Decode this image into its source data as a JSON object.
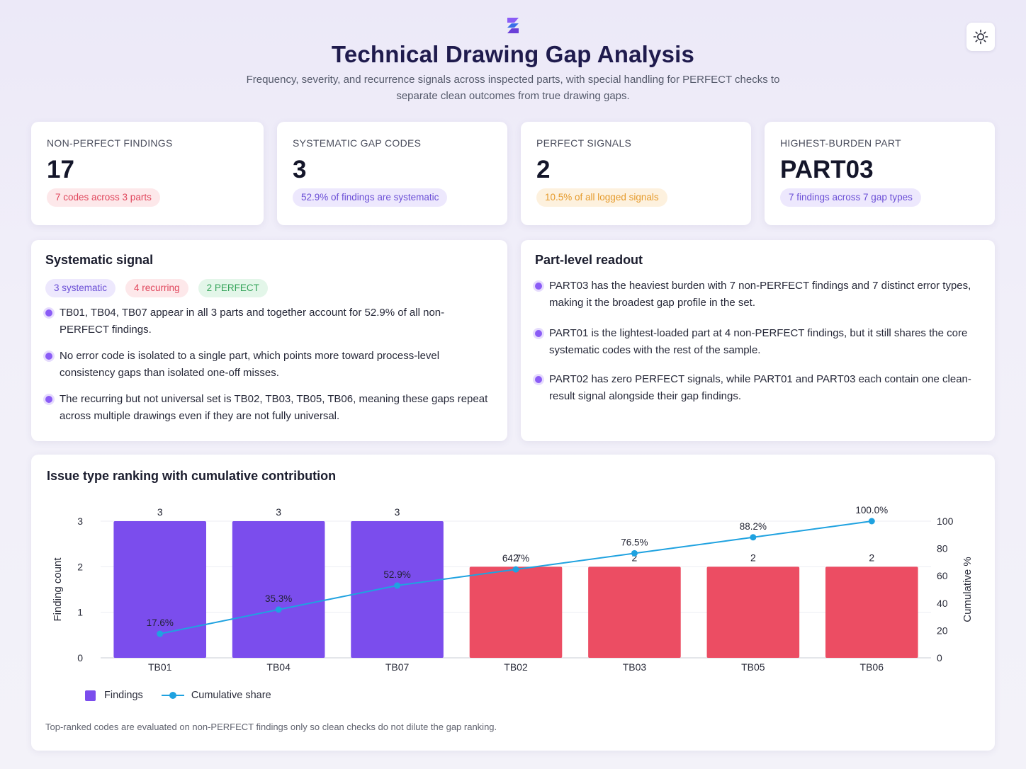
{
  "header": {
    "title": "Technical Drawing Gap Analysis",
    "subtitle": "Frequency, severity, and recurrence signals across inspected parts, with special handling for PERFECT checks to separate clean outcomes from true drawing gaps.",
    "logo_icon": "stacked-s-logo-icon",
    "theme_toggle_icon": "sun-icon"
  },
  "kpis": [
    {
      "label": "NON-PERFECT FINDINGS",
      "value": "17",
      "pill": "7 codes across 3 parts",
      "tone": "red"
    },
    {
      "label": "SYSTEMATIC GAP CODES",
      "value": "3",
      "pill": "52.9% of findings are systematic",
      "tone": "purple"
    },
    {
      "label": "PERFECT SIGNALS",
      "value": "2",
      "pill": "10.5% of all logged signals",
      "tone": "orange"
    },
    {
      "label": "HIGHEST-BURDEN PART",
      "value": "PART03",
      "pill": "7 findings across 7 gap types",
      "tone": "purple"
    }
  ],
  "systematic": {
    "title": "Systematic signal",
    "pills": [
      {
        "text": "3 systematic",
        "tone": "purple"
      },
      {
        "text": "4 recurring",
        "tone": "red"
      },
      {
        "text": "2 PERFECT",
        "tone": "green"
      }
    ],
    "bullets": [
      "TB01, TB04, TB07 appear in all 3 parts and together account for 52.9% of all non-PERFECT findings.",
      "No error code is isolated to a single part, which points more toward process-level consistency gaps than isolated one-off misses.",
      "The recurring but not universal set is TB02, TB03, TB05, TB06, meaning these gaps repeat across multiple drawings even if they are not fully universal."
    ]
  },
  "part_readout": {
    "title": "Part-level readout",
    "bullets": [
      "PART03 has the heaviest burden with 7 non-PERFECT findings and 7 distinct error types, making it the broadest gap profile in the set.",
      "PART01 is the lightest-loaded part at 4 non-PERFECT findings, but it still shares the core systematic codes with the rest of the sample.",
      "PART02 has zero PERFECT signals, while PART01 and PART03 each contain one clean-result signal alongside their gap findings."
    ]
  },
  "chart_data": {
    "type": "bar",
    "title": "Issue type ranking with cumulative contribution",
    "categories": [
      "TB01",
      "TB04",
      "TB07",
      "TB02",
      "TB03",
      "TB05",
      "TB06"
    ],
    "series": [
      {
        "name": "Findings",
        "type": "bar",
        "axis": "left",
        "values": [
          3,
          3,
          3,
          2,
          2,
          2,
          2
        ],
        "colors": [
          "#7b4ded",
          "#7b4ded",
          "#7b4ded",
          "#ec4d63",
          "#ec4d63",
          "#ec4d63",
          "#ec4d63"
        ]
      },
      {
        "name": "Cumulative share",
        "type": "line",
        "axis": "right",
        "values": [
          17.6,
          35.3,
          52.9,
          64.7,
          76.5,
          88.2,
          100.0
        ],
        "labels": [
          "17.6%",
          "35.3%",
          "52.9%",
          "64.7%",
          "76.5%",
          "88.2%",
          "100.0%"
        ],
        "color": "#1fa2e0"
      }
    ],
    "ylabel": "Finding count",
    "y2label": "Cumulative %",
    "ylim": [
      0,
      3
    ],
    "yticks": [
      0,
      1,
      2,
      3
    ],
    "y2lim": [
      0,
      100
    ],
    "y2ticks": [
      0,
      20,
      40,
      60,
      80,
      100
    ],
    "grid": true,
    "legend": "bottom-left",
    "footnote": "Top-ranked codes are evaluated on non-PERFECT findings only so clean checks do not dilute the gap ranking."
  }
}
